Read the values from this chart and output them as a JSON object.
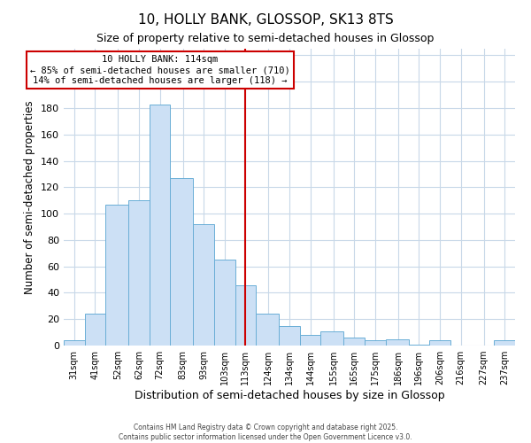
{
  "title": "10, HOLLY BANK, GLOSSOP, SK13 8TS",
  "subtitle": "Size of property relative to semi-detached houses in Glossop",
  "xlabel": "Distribution of semi-detached houses by size in Glossop",
  "ylabel": "Number of semi-detached properties",
  "categories": [
    "31sqm",
    "41sqm",
    "52sqm",
    "62sqm",
    "72sqm",
    "83sqm",
    "93sqm",
    "103sqm",
    "113sqm",
    "124sqm",
    "134sqm",
    "144sqm",
    "155sqm",
    "165sqm",
    "175sqm",
    "186sqm",
    "196sqm",
    "206sqm",
    "216sqm",
    "227sqm",
    "237sqm"
  ],
  "bar_edges": [
    26,
    36,
    46,
    57,
    67,
    77,
    88,
    98,
    108,
    118,
    129,
    139,
    149,
    160,
    170,
    180,
    191,
    201,
    211,
    221,
    232,
    242
  ],
  "tick_positions": [
    31,
    41,
    52,
    62,
    72,
    83,
    93,
    103,
    113,
    124,
    134,
    144,
    155,
    165,
    175,
    186,
    196,
    206,
    216,
    227,
    237
  ],
  "values": [
    4,
    24,
    107,
    110,
    183,
    127,
    92,
    65,
    46,
    24,
    15,
    8,
    11,
    6,
    4,
    5,
    1,
    4,
    0,
    0,
    4
  ],
  "bar_color": "#cce0f5",
  "bar_edge_color": "#6aaed6",
  "vline_x": 113,
  "vline_color": "#cc0000",
  "annotation_title": "10 HOLLY BANK: 114sqm",
  "annotation_line1": "← 85% of semi-detached houses are smaller (710)",
  "annotation_line2": "14% of semi-detached houses are larger (118) →",
  "annotation_box_color": "#ffffff",
  "annotation_box_edge_color": "#cc0000",
  "ylim": [
    0,
    225
  ],
  "yticks": [
    0,
    20,
    40,
    60,
    80,
    100,
    120,
    140,
    160,
    180,
    200,
    220
  ],
  "title_fontsize": 11,
  "subtitle_fontsize": 9,
  "xlabel_fontsize": 9,
  "ylabel_fontsize": 8.5,
  "footer_line1": "Contains HM Land Registry data © Crown copyright and database right 2025.",
  "footer_line2": "Contains public sector information licensed under the Open Government Licence v3.0.",
  "background_color": "#ffffff",
  "grid_color": "#c8d8e8"
}
